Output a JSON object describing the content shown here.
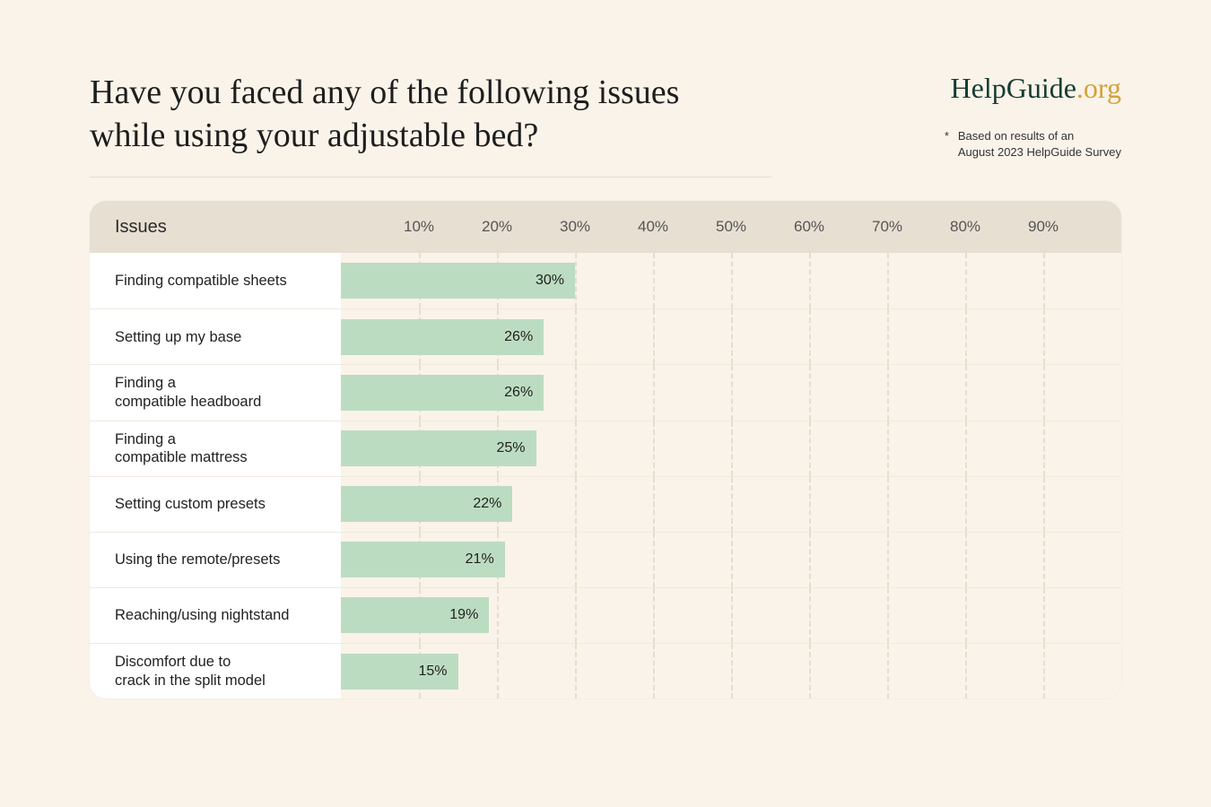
{
  "title": "Have you faced any of the following issues while using your adjustable bed?",
  "brand": {
    "name": "HelpGuide",
    "suffix": ".org"
  },
  "footnote": {
    "marker": "*",
    "text": "Based on results of an\nAugust 2023 HelpGuide Survey"
  },
  "chart": {
    "type": "bar",
    "issues_header": "Issues",
    "x_ticks": [
      10,
      20,
      30,
      40,
      50,
      60,
      70,
      80,
      90
    ],
    "x_max": 100,
    "bar_color": "#bcdcc1",
    "row_alt_bg": "#faf3e9",
    "header_bg": "#e7dfd2",
    "grid_color": "#ded5c2",
    "title_fontsize": 38,
    "label_fontsize": 16.5,
    "tick_fontsize": 17,
    "value_fontsize": 16,
    "rows": [
      {
        "label": "Finding compatible sheets",
        "value": 30
      },
      {
        "label": "Setting up my base",
        "value": 26
      },
      {
        "label": "Finding a\ncompatible headboard",
        "value": 26
      },
      {
        "label": "Finding a\ncompatible mattress",
        "value": 25
      },
      {
        "label": "Setting custom presets",
        "value": 22
      },
      {
        "label": "Using the remote/presets",
        "value": 21
      },
      {
        "label": "Reaching/using nightstand",
        "value": 19
      },
      {
        "label": "Discomfort due to\ncrack in the split model",
        "value": 15
      }
    ]
  },
  "colors": {
    "page_bg": "#faf3e9",
    "text": "#2b2b2b",
    "brand_dark": "#173c32",
    "brand_accent": "#d3a23a"
  }
}
